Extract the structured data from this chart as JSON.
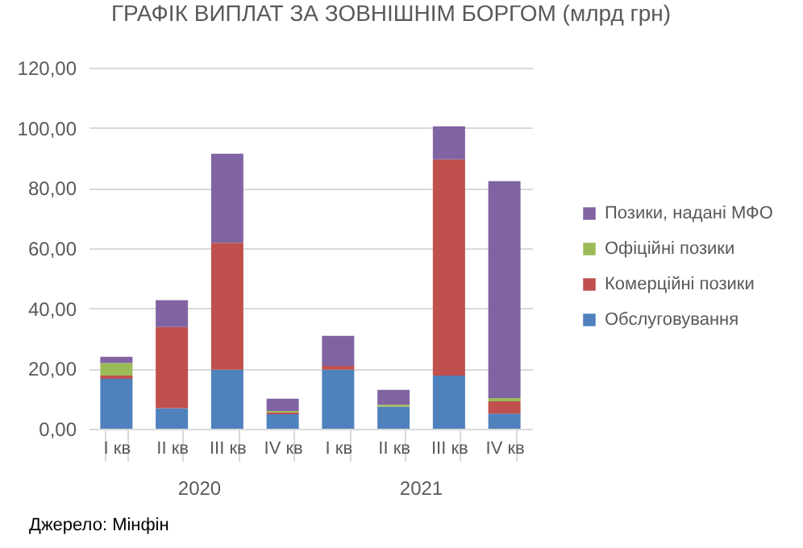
{
  "chart_data": {
    "type": "bar",
    "title": "ГРАФІК ВИПЛАТ ЗА ЗОВНІШНІМ БОРГОМ (млрд грн)",
    "categories": [
      "I кв",
      "II кв",
      "III кв",
      "IV кв",
      "I кв",
      "II кв",
      "III кв",
      "IV кв"
    ],
    "stacked": true,
    "series": [
      {
        "name": "Обслуговування",
        "color": "#4f81bd",
        "values": [
          16.6,
          6.8,
          19.6,
          4.8,
          19.6,
          7.3,
          17.7,
          5.0
        ]
      },
      {
        "name": "Комерційні позики",
        "color": "#c0504d",
        "values": [
          1.1,
          27.0,
          42.2,
          0.6,
          1.3,
          0,
          71.8,
          4.1
        ]
      },
      {
        "name": "Офіційні позики",
        "color": "#9bbb59",
        "values": [
          4.1,
          0,
          0,
          0.5,
          0,
          0.7,
          0,
          1.1
        ]
      },
      {
        "name": "Позики, надані МФО",
        "color": "#8064a2",
        "values": [
          2.1,
          8.9,
          29.6,
          4.1,
          10.0,
          4.9,
          11.0,
          72.1
        ]
      }
    ],
    "ylim": [
      0,
      120
    ],
    "yticks": [
      {
        "value": 0,
        "label": "0,00"
      },
      {
        "value": 20,
        "label": "20,00"
      },
      {
        "value": 40,
        "label": "40,00"
      },
      {
        "value": 60,
        "label": "60,00"
      },
      {
        "value": 80,
        "label": "80,00"
      },
      {
        "value": 100,
        "label": "100,00"
      },
      {
        "value": 120,
        "label": "120,00"
      }
    ],
    "grid": "y",
    "legend": "right",
    "annotations": [
      "2020",
      "2021",
      "Джерело: Мінфін"
    ]
  }
}
